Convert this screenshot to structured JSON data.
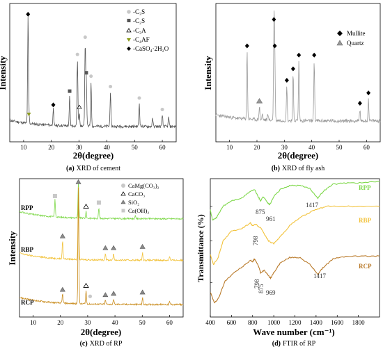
{
  "panels": [
    {
      "id": "a",
      "caption_tag": "(a)",
      "caption": "XRD of cement",
      "xlabel": "2θ(degree)",
      "ylabel": "Intensity",
      "xticks": [
        "10",
        "20",
        "30",
        "40",
        "50",
        "60"
      ],
      "legend": [
        "-C₃S",
        "-C₂S",
        "-C₃A",
        "-C₄AF",
        "-CaSO₄·2H₂O"
      ]
    },
    {
      "id": "b",
      "caption_tag": "(b)",
      "caption": "XRD of fly ash",
      "xlabel": "2θ(degree)",
      "ylabel": "Intensity",
      "xticks": [
        "10",
        "20",
        "30",
        "40",
        "50",
        "60"
      ],
      "legend": [
        "Mullite",
        "Quartz"
      ]
    },
    {
      "id": "c",
      "caption_tag": "(c)",
      "caption": "XRD of RP",
      "xlabel": "2θ(degree)",
      "ylabel": "Intensity",
      "xticks": [
        "10",
        "20",
        "30",
        "40",
        "50",
        "60"
      ],
      "legend": [
        "CaMg(CO₃)₂",
        "CaCO₃",
        "SiO₂",
        "Ca(OH)₂"
      ],
      "series_labels": [
        "RPP",
        "RBP",
        "RCP"
      ]
    },
    {
      "id": "d",
      "caption_tag": "(d)",
      "caption": "FTIR of RP",
      "xlabel": "Wave number (cm⁻¹)",
      "ylabel": "Transmittance (%)",
      "xticks": [
        "400",
        "600",
        "800",
        "1000",
        "1200",
        "1400",
        "1600",
        "1800"
      ],
      "series_labels": [
        "RPP",
        "RBP",
        "RCP"
      ],
      "annotations": [
        "875",
        "961",
        "1417",
        "798",
        "798",
        "875",
        "969",
        "1417"
      ]
    }
  ],
  "chart_data": [
    {
      "type": "line",
      "title": "XRD of cement",
      "xlabel": "2θ(degree)",
      "ylabel": "Intensity",
      "xlim": [
        5,
        65
      ],
      "color": "#555555",
      "peaks": [
        {
          "x": 11.6,
          "h": 0.93,
          "phase": "CaSO₄·2H₂O"
        },
        {
          "x": 11.9,
          "h": 0.06,
          "phase": "C₄AF"
        },
        {
          "x": 20.7,
          "h": 0.14,
          "phase": "CaSO₄·2H₂O"
        },
        {
          "x": 26.6,
          "h": 0.26,
          "phase": "C₂S"
        },
        {
          "x": 29.4,
          "h": 0.58,
          "phase": "C₃S"
        },
        {
          "x": 30.1,
          "h": 0.12,
          "phase": "C₃A"
        },
        {
          "x": 32.2,
          "h": 0.73,
          "phase": "C₃S"
        },
        {
          "x": 32.6,
          "h": 0.42,
          "phase": "C₂S"
        },
        {
          "x": 34.3,
          "h": 0.39,
          "phase": "C₃S"
        },
        {
          "x": 41.3,
          "h": 0.3,
          "phase": "C₃S"
        },
        {
          "x": 51.7,
          "h": 0.2,
          "phase": "C₃S"
        },
        {
          "x": 56.5,
          "h": 0.07,
          "phase": ""
        },
        {
          "x": 60.0,
          "h": 0.1,
          "phase": "C₃S"
        },
        {
          "x": 62.3,
          "h": 0.08,
          "phase": ""
        }
      ]
    },
    {
      "type": "line",
      "title": "XRD of fly ash",
      "xlabel": "2θ(degree)",
      "ylabel": "Intensity",
      "xlim": [
        5,
        65
      ],
      "color": "#999999",
      "peaks": [
        {
          "x": 16.4,
          "h": 0.6,
          "phase": "Mullite"
        },
        {
          "x": 20.9,
          "h": 0.12,
          "phase": "Quartz"
        },
        {
          "x": 26.2,
          "h": 0.83,
          "phase": "Mullite"
        },
        {
          "x": 26.5,
          "h": 0.6,
          "phase": "Mullite"
        },
        {
          "x": 30.9,
          "h": 0.3,
          "phase": "Mullite"
        },
        {
          "x": 33.2,
          "h": 0.4,
          "phase": "Mullite"
        },
        {
          "x": 35.3,
          "h": 0.52,
          "phase": "Mullite"
        },
        {
          "x": 40.9,
          "h": 0.52,
          "phase": "Mullite"
        },
        {
          "x": 57.6,
          "h": 0.1,
          "phase": "Mullite"
        },
        {
          "x": 60.7,
          "h": 0.19,
          "phase": "Mullite"
        }
      ]
    },
    {
      "type": "line",
      "title": "XRD of RP",
      "xlabel": "2θ(degree)",
      "ylabel": "Intensity",
      "xlim": [
        5,
        65
      ],
      "series": [
        {
          "name": "RPP",
          "color": "#7ed84a",
          "offset": 0.68,
          "peaks": [
            {
              "x": 18.0,
              "h": 0.13
            },
            {
              "x": 26.6,
              "h": 0.28
            },
            {
              "x": 29.4,
              "h": 0.05
            },
            {
              "x": 34.1,
              "h": 0.08
            },
            {
              "x": 47.5,
              "h": 0.02
            }
          ]
        },
        {
          "name": "RBP",
          "color": "#f2c23a",
          "offset": 0.38,
          "peaks": [
            {
              "x": 20.8,
              "h": 0.14
            },
            {
              "x": 26.6,
              "h": 0.55
            },
            {
              "x": 36.5,
              "h": 0.05
            },
            {
              "x": 39.5,
              "h": 0.05
            },
            {
              "x": 50.1,
              "h": 0.06
            },
            {
              "x": 60.0,
              "h": 0.03
            }
          ]
        },
        {
          "name": "RCP",
          "color": "#c98c1e",
          "offset": 0.06,
          "peaks": [
            {
              "x": 20.8,
              "h": 0.07
            },
            {
              "x": 26.6,
              "h": 0.9
            },
            {
              "x": 29.4,
              "h": 0.1
            },
            {
              "x": 36.5,
              "h": 0.03
            },
            {
              "x": 39.5,
              "h": 0.04
            },
            {
              "x": 50.1,
              "h": 0.05
            },
            {
              "x": 60.0,
              "h": 0.02
            }
          ]
        }
      ]
    },
    {
      "type": "line",
      "title": "FTIR of RP",
      "xlabel": "Wave number (cm⁻¹)",
      "ylabel": "Transmittance (%)",
      "xlim": [
        400,
        2000
      ],
      "series": [
        {
          "name": "RPP",
          "color": "#7ed84a",
          "points": [
            [
              400,
              0.78
            ],
            [
              420,
              0.7
            ],
            [
              460,
              0.72
            ],
            [
              520,
              0.8
            ],
            [
              600,
              0.84
            ],
            [
              700,
              0.86
            ],
            [
              780,
              0.91
            ],
            [
              820,
              0.92
            ],
            [
              860,
              0.86
            ],
            [
              875,
              0.84
            ],
            [
              900,
              0.87
            ],
            [
              940,
              0.83
            ],
            [
              961,
              0.81
            ],
            [
              1000,
              0.87
            ],
            [
              1060,
              0.92
            ],
            [
              1150,
              0.95
            ],
            [
              1250,
              0.95
            ],
            [
              1340,
              0.93
            ],
            [
              1417,
              0.86
            ],
            [
              1470,
              0.91
            ],
            [
              1560,
              0.96
            ],
            [
              1700,
              0.97
            ],
            [
              1850,
              0.97
            ],
            [
              2000,
              0.98
            ]
          ]
        },
        {
          "name": "RBP",
          "color": "#f2c23a",
          "points": [
            [
              400,
              0.45
            ],
            [
              430,
              0.38
            ],
            [
              470,
              0.42
            ],
            [
              520,
              0.55
            ],
            [
              600,
              0.62
            ],
            [
              700,
              0.64
            ],
            [
              780,
              0.68
            ],
            [
              798,
              0.66
            ],
            [
              830,
              0.67
            ],
            [
              880,
              0.64
            ],
            [
              950,
              0.55
            ],
            [
              1000,
              0.53
            ],
            [
              1050,
              0.57
            ],
            [
              1150,
              0.66
            ],
            [
              1250,
              0.72
            ],
            [
              1350,
              0.76
            ],
            [
              1417,
              0.78
            ],
            [
              1500,
              0.8
            ],
            [
              1650,
              0.8
            ],
            [
              1800,
              0.8
            ],
            [
              2000,
              0.8
            ]
          ]
        },
        {
          "name": "RCP",
          "color": "#b97a2a",
          "points": [
            [
              400,
              0.18
            ],
            [
              440,
              0.1
            ],
            [
              480,
              0.14
            ],
            [
              540,
              0.26
            ],
            [
              620,
              0.32
            ],
            [
              700,
              0.36
            ],
            [
              780,
              0.41
            ],
            [
              798,
              0.4
            ],
            [
              820,
              0.42
            ],
            [
              860,
              0.36
            ],
            [
              875,
              0.32
            ],
            [
              910,
              0.34
            ],
            [
              950,
              0.3
            ],
            [
              969,
              0.28
            ],
            [
              1000,
              0.32
            ],
            [
              1060,
              0.39
            ],
            [
              1150,
              0.43
            ],
            [
              1250,
              0.43
            ],
            [
              1340,
              0.38
            ],
            [
              1417,
              0.31
            ],
            [
              1470,
              0.36
            ],
            [
              1560,
              0.42
            ],
            [
              1700,
              0.44
            ],
            [
              1850,
              0.44
            ],
            [
              2000,
              0.44
            ]
          ]
        }
      ]
    }
  ]
}
